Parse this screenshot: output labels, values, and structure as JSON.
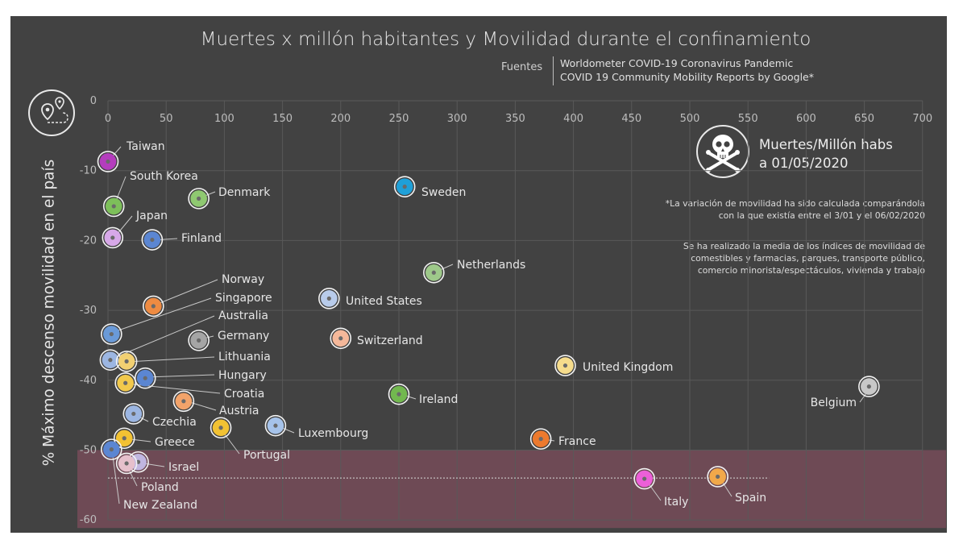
{
  "header": {
    "title": "Muertes x millón habitantes y Movilidad durante el confinamiento",
    "sources_label": "Fuentes",
    "sources": [
      "Worldometer COVID-19 Coronavirus Pandemic",
      "COVID 19 Community Mobility Reports by Google*"
    ]
  },
  "legend": {
    "line1": "Muertes/Millón habs",
    "line2": "a 01/05/2020",
    "skull_icon": "skull-crossbones-icon",
    "map_icon": "map-route-icon"
  },
  "notes": [
    "*La variación de movilidad ha sido calculada comparándola con la que existía entre el 3/01  y el 06/02/2020",
    "Se ha realizado la media de los índices de movilidad de comestibles y  farmacias, parques, transporte público, comercio minorista/espectáculos, vivienda y trabajo"
  ],
  "chart_data": {
    "type": "scatter",
    "title": "Muertes x millón habitantes y Movilidad durante el confinamiento",
    "xlabel": "",
    "ylabel": "% Máximo descenso movilidad en el país",
    "xlim": [
      0,
      700
    ],
    "ylim": [
      -60,
      0
    ],
    "x_ticks": [
      0,
      50,
      100,
      150,
      200,
      250,
      300,
      350,
      400,
      450,
      500,
      550,
      600,
      650,
      700
    ],
    "y_ticks": [
      0,
      -10,
      -20,
      -30,
      -40,
      -50,
      -60
    ],
    "grid": true,
    "highlight_band": {
      "y_from": -60,
      "y_to": -50,
      "color": "#6e4a55"
    },
    "reference_line_y": -54,
    "points": [
      {
        "name": "Taiwan",
        "x": 0,
        "y": -8.7,
        "color": "#b43dbd"
      },
      {
        "name": "South Korea",
        "x": 5,
        "y": -15.1,
        "color": "#7dbf5a"
      },
      {
        "name": "Denmark",
        "x": 78,
        "y": -14,
        "color": "#8fc971"
      },
      {
        "name": "Japan",
        "x": 4,
        "y": -19.6,
        "color": "#d7a8e8"
      },
      {
        "name": "Finland",
        "x": 38,
        "y": -19.9,
        "color": "#5b86d2"
      },
      {
        "name": "Sweden",
        "x": 255,
        "y": -12.3,
        "color": "#1fa0d8"
      },
      {
        "name": "Netherlands",
        "x": 280,
        "y": -24.6,
        "color": "#9ec98a"
      },
      {
        "name": "Norway",
        "x": 39,
        "y": -29.4,
        "color": "#ee8b42"
      },
      {
        "name": "United States",
        "x": 190,
        "y": -28.3,
        "color": "#b8cbea"
      },
      {
        "name": "Singapore",
        "x": 3,
        "y": -33.4,
        "color": "#6a9ad8"
      },
      {
        "name": "Germany",
        "x": 78,
        "y": -34.3,
        "color": "#a5a5a5"
      },
      {
        "name": "Switzerland",
        "x": 200,
        "y": -34,
        "color": "#f5b89a"
      },
      {
        "name": "Australia",
        "x": 2,
        "y": -37.1,
        "color": "#9cb6e2"
      },
      {
        "name": "Lithuania",
        "x": 16,
        "y": -37.3,
        "color": "#f2d072"
      },
      {
        "name": "United Kingdom",
        "x": 393,
        "y": -37.9,
        "color": "#f6dc8c"
      },
      {
        "name": "Hungary",
        "x": 32,
        "y": -39.7,
        "color": "#5b86d2"
      },
      {
        "name": "Croatia",
        "x": 15,
        "y": -40.4,
        "color": "#f2c94c"
      },
      {
        "name": "Belgium",
        "x": 654,
        "y": -40.9,
        "color": "#c8c8c8"
      },
      {
        "name": "Ireland",
        "x": 250,
        "y": -42,
        "color": "#72b84f"
      },
      {
        "name": "Austria",
        "x": 65,
        "y": -43,
        "color": "#f2a36a"
      },
      {
        "name": "Czechia",
        "x": 22,
        "y": -44.8,
        "color": "#9cb6e2"
      },
      {
        "name": "Portugal",
        "x": 97,
        "y": -46.8,
        "color": "#f2c233"
      },
      {
        "name": "Luxembourg",
        "x": 144,
        "y": -46.5,
        "color": "#a6c3ea"
      },
      {
        "name": "Greece",
        "x": 14,
        "y": -48.3,
        "color": "#f2c233"
      },
      {
        "name": "France",
        "x": 372,
        "y": -48.4,
        "color": "#ec7a2e"
      },
      {
        "name": "New Zealand",
        "x": 3,
        "y": -49.9,
        "color": "#5b86d2"
      },
      {
        "name": "Israel",
        "x": 26,
        "y": -51.7,
        "color": "#c0b6e0"
      },
      {
        "name": "Poland",
        "x": 16,
        "y": -51.9,
        "color": "#e6c0cc"
      },
      {
        "name": "Italy",
        "x": 461,
        "y": -54.1,
        "color": "#ec5fd8"
      },
      {
        "name": "Spain",
        "x": 524,
        "y": -53.8,
        "color": "#f1a84a"
      }
    ]
  }
}
